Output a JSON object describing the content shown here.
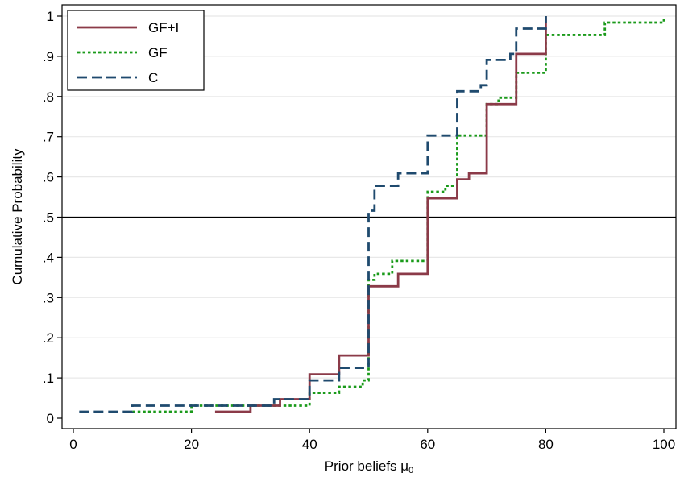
{
  "chart_data": {
    "type": "line",
    "step": true,
    "title": "",
    "xlabel": "Prior beliefs μ",
    "xlabel_subscript": "0",
    "ylabel": "Cumulative Probability",
    "xlim": [
      0,
      100
    ],
    "ylim": [
      0,
      1
    ],
    "xticks": [
      0,
      20,
      40,
      60,
      80,
      100
    ],
    "xtick_labels": [
      "0",
      "20",
      "40",
      "60",
      "80",
      "100"
    ],
    "yticks": [
      0,
      0.1,
      0.2,
      0.3,
      0.4,
      0.5,
      0.6,
      0.7,
      0.8,
      0.9,
      1
    ],
    "ytick_labels": [
      "0",
      ".1",
      ".2",
      ".3",
      ".4",
      ".5",
      ".6",
      ".7",
      ".8",
      ".9",
      "1"
    ],
    "grid": "horizontal",
    "reference_line_y": 0.5,
    "legend_position": "top-left",
    "series": [
      {
        "name": "GF+I",
        "color": "#8b3a48",
        "dash": "solid",
        "points": [
          [
            24,
            0.016
          ],
          [
            30,
            0.031
          ],
          [
            35,
            0.047
          ],
          [
            40,
            0.109
          ],
          [
            45,
            0.156
          ],
          [
            50,
            0.328
          ],
          [
            55,
            0.359
          ],
          [
            60,
            0.547
          ],
          [
            65,
            0.594
          ],
          [
            67,
            0.609
          ],
          [
            70,
            0.781
          ],
          [
            75,
            0.906
          ],
          [
            80,
            1.0
          ]
        ]
      },
      {
        "name": "GF",
        "color": "#1a9a1a",
        "dash": "dotted",
        "points": [
          [
            10,
            0.016
          ],
          [
            20,
            0.031
          ],
          [
            40,
            0.063
          ],
          [
            45,
            0.078
          ],
          [
            49,
            0.094
          ],
          [
            50,
            0.344
          ],
          [
            51,
            0.359
          ],
          [
            54,
            0.391
          ],
          [
            60,
            0.563
          ],
          [
            63,
            0.578
          ],
          [
            65,
            0.703
          ],
          [
            70,
            0.781
          ],
          [
            72,
            0.797
          ],
          [
            75,
            0.859
          ],
          [
            80,
            0.953
          ],
          [
            90,
            0.984
          ],
          [
            100,
            0.992
          ]
        ]
      },
      {
        "name": "C",
        "color": "#1f4a6e",
        "dash": "dashed",
        "points": [
          [
            1,
            0.016
          ],
          [
            10,
            0.031
          ],
          [
            34,
            0.047
          ],
          [
            40,
            0.094
          ],
          [
            45,
            0.125
          ],
          [
            50,
            0.516
          ],
          [
            51,
            0.578
          ],
          [
            55,
            0.609
          ],
          [
            60,
            0.703
          ],
          [
            65,
            0.813
          ],
          [
            69,
            0.828
          ],
          [
            70,
            0.891
          ],
          [
            74,
            0.906
          ],
          [
            75,
            0.969
          ],
          [
            80,
            1.0
          ]
        ]
      }
    ]
  }
}
